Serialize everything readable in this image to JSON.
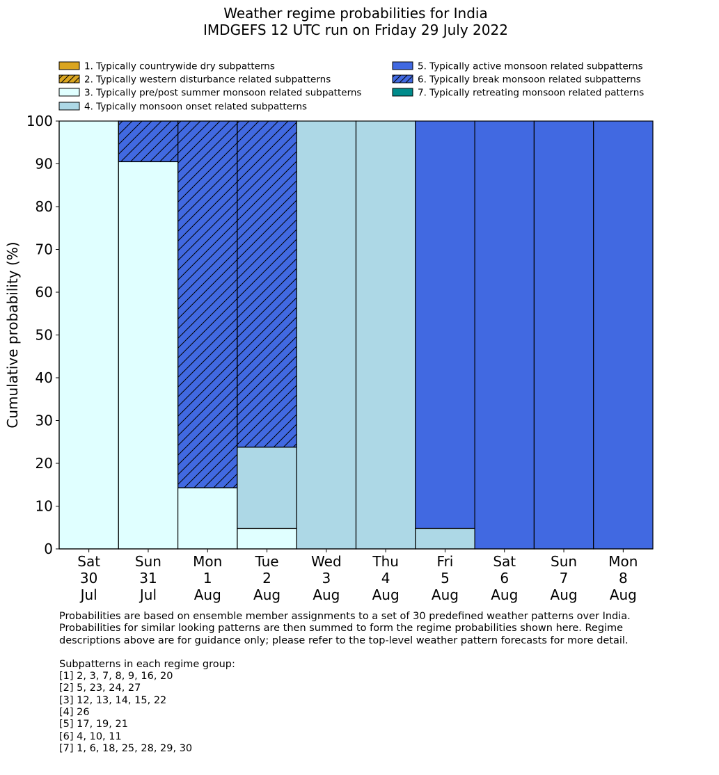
{
  "chart_data": {
    "type": "bar",
    "stacked": true,
    "title": [
      "Weather regime probabilities for India",
      "IMDGEFS 12 UTC run on Friday 29 July 2022"
    ],
    "ylabel": "Cumulative probability (%)",
    "xlabel": "",
    "ylim": [
      0,
      100
    ],
    "yticks": [
      0,
      10,
      20,
      30,
      40,
      50,
      60,
      70,
      80,
      90,
      100
    ],
    "grid": false,
    "legend_position": "top",
    "categories": [
      [
        "Sat",
        "30",
        "Jul"
      ],
      [
        "Sun",
        "31",
        "Jul"
      ],
      [
        "Mon",
        "1",
        "Aug"
      ],
      [
        "Tue",
        "2",
        "Aug"
      ],
      [
        "Wed",
        "3",
        "Aug"
      ],
      [
        "Thu",
        "4",
        "Aug"
      ],
      [
        "Fri",
        "5",
        "Aug"
      ],
      [
        "Sat",
        "6",
        "Aug"
      ],
      [
        "Sun",
        "7",
        "Aug"
      ],
      [
        "Mon",
        "8",
        "Aug"
      ]
    ],
    "series": [
      {
        "name": "1. Typically countrywide dry subpatterns",
        "color": "#daa520",
        "hatch": false,
        "values": [
          0,
          0,
          0,
          0,
          0,
          0,
          0,
          0,
          0,
          0
        ]
      },
      {
        "name": "2. Typically western disturbance related subpatterns",
        "color": "#daa520",
        "hatch": true,
        "values": [
          0,
          0,
          0,
          0,
          0,
          0,
          0,
          0,
          0,
          0
        ]
      },
      {
        "name": "3. Typically pre/post summer monsoon related subpatterns",
        "color": "#e0ffff",
        "hatch": false,
        "values": [
          100,
          90.5,
          14.3,
          4.8,
          0,
          0,
          0,
          0,
          0,
          0
        ]
      },
      {
        "name": "4. Typically monsoon onset related subpatterns",
        "color": "#add8e6",
        "hatch": false,
        "values": [
          0,
          0,
          0,
          19.0,
          100,
          100,
          4.8,
          0,
          0,
          0
        ]
      },
      {
        "name": "5. Typically active monsoon related subpatterns",
        "color": "#4169e1",
        "hatch": false,
        "values": [
          0,
          0,
          0,
          0,
          0,
          0,
          95.2,
          100,
          100,
          100
        ]
      },
      {
        "name": "6. Typically break monsoon related subpatterns",
        "color": "#4169e1",
        "hatch": true,
        "values": [
          0,
          9.5,
          85.7,
          76.2,
          0,
          0,
          0,
          0,
          0,
          0
        ]
      },
      {
        "name": "7. Typically retreating monsoon related patterns",
        "color": "#008b8b",
        "hatch": false,
        "values": [
          0,
          0,
          0,
          0,
          0,
          0,
          0,
          0,
          0,
          0
        ]
      }
    ]
  },
  "notes": {
    "description": [
      "Probabilities are based on ensemble member assignments to a set of 30 predefined weather patterns over India.",
      "Probabilities for similar looking patterns are then summed to form the regime probabilities shown here. Regime",
      "descriptions above are for guidance only; please refer to the top-level weather pattern forecasts for more detail."
    ],
    "subpatterns_heading": "Subpatterns in each regime group:",
    "subpatterns": [
      "[1] 2, 3, 7, 8, 9, 16, 20",
      "[2] 5, 23, 24, 27",
      "[3] 12, 13, 14, 15, 22",
      "[4] 26",
      "[5] 17, 19, 21",
      "[6] 4, 10, 11",
      "[7] 1, 6, 18, 25, 28, 29, 30"
    ]
  }
}
